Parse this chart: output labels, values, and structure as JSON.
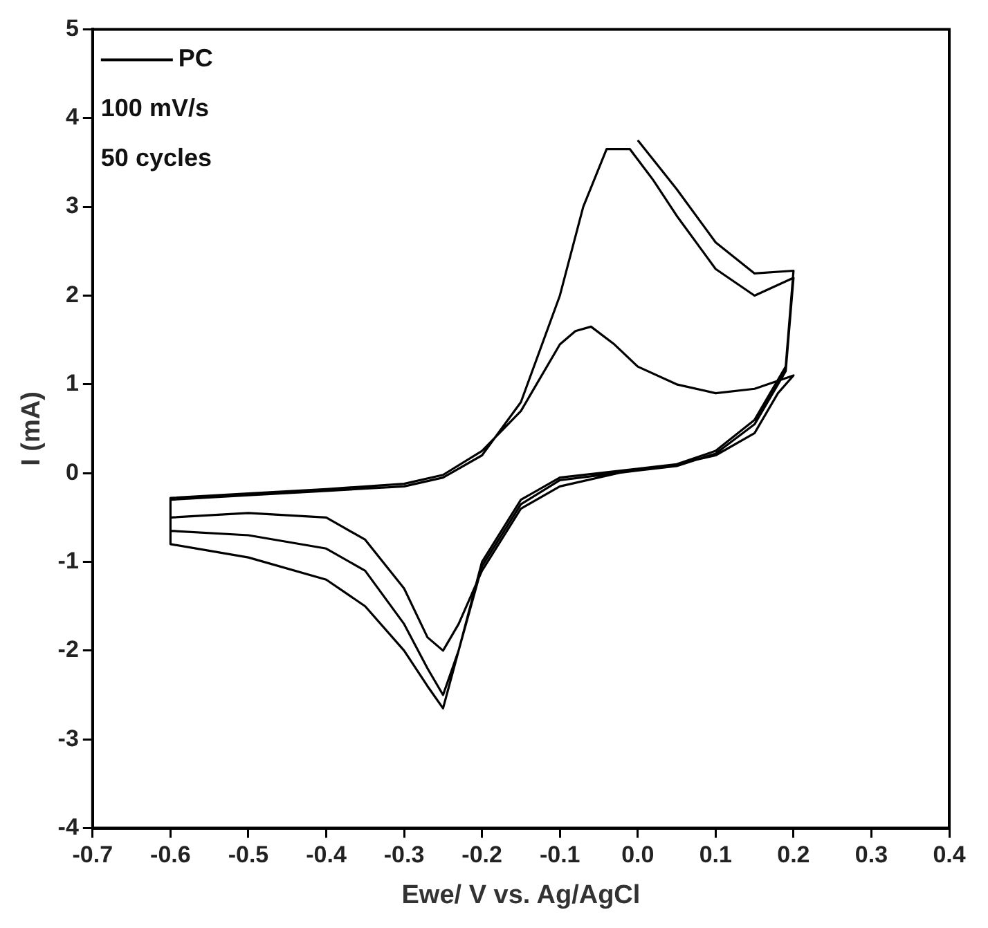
{
  "chart_data": {
    "type": "line",
    "xlabel": "Ewe/ V vs. Ag/AgCl",
    "ylabel": "I (mA)",
    "xlim": [
      -0.7,
      0.4
    ],
    "xticks": [
      -0.7,
      -0.6,
      -0.5,
      -0.4,
      -0.3,
      -0.2,
      -0.1,
      {
        "value": 0,
        "label": "0.0"
      },
      0.1,
      0.2,
      0.3,
      0.4
    ],
    "ylim": [
      -4,
      5
    ],
    "yticks": [
      -4,
      -3,
      -2,
      -1,
      0,
      1,
      2,
      3,
      4,
      5
    ],
    "grid": false,
    "legend": "top left",
    "marker": "none",
    "line_style": "solid",
    "annotations": [
      "100 mV/s",
      "50 cycles"
    ],
    "series": [
      {
        "name": "PC",
        "color": "#000000",
        "x": [
          0.0,
          0.05,
          0.1,
          0.15,
          0.2,
          0.19,
          0.15,
          0.1,
          0.05,
          0.0,
          -0.1,
          -0.15,
          -0.2,
          -0.23,
          -0.25,
          -0.27,
          -0.3,
          -0.35,
          -0.4,
          -0.5,
          -0.6,
          -0.6,
          -0.5,
          -0.4,
          -0.3,
          -0.25,
          -0.2,
          -0.15,
          -0.1,
          -0.07,
          -0.04,
          -0.01,
          0.02,
          0.05,
          0.1,
          0.15,
          0.2,
          0.19,
          0.15,
          0.1,
          0.05,
          0.0,
          -0.1,
          -0.15,
          -0.2,
          -0.23,
          -0.25,
          -0.27,
          -0.3,
          -0.35,
          -0.4,
          -0.5,
          -0.6,
          -0.6,
          -0.5,
          -0.4,
          -0.3,
          -0.25,
          -0.2,
          -0.15,
          -0.1,
          -0.08,
          -0.06,
          -0.03,
          0.0,
          0.05,
          0.1,
          0.15,
          0.2,
          0.18,
          0.15,
          0.1,
          0.05,
          0.0,
          -0.1,
          -0.15,
          -0.2,
          -0.23,
          -0.25,
          -0.27,
          -0.3,
          -0.35,
          -0.4,
          -0.5,
          -0.6
        ],
        "values": [
          3.75,
          3.2,
          2.6,
          2.25,
          2.28,
          1.2,
          0.6,
          0.25,
          0.1,
          0.05,
          -0.05,
          -0.3,
          -1.0,
          -2.0,
          -2.65,
          -2.4,
          -2.0,
          -1.5,
          -1.2,
          -0.95,
          -0.8,
          -0.3,
          -0.25,
          -0.2,
          -0.15,
          -0.05,
          0.2,
          0.8,
          2.0,
          3.0,
          3.65,
          3.65,
          3.3,
          2.9,
          2.3,
          2.0,
          2.2,
          1.15,
          0.55,
          0.22,
          0.08,
          0.03,
          -0.08,
          -0.35,
          -1.05,
          -2.0,
          -2.5,
          -2.2,
          -1.7,
          -1.1,
          -0.85,
          -0.7,
          -0.65,
          -0.28,
          -0.23,
          -0.18,
          -0.12,
          -0.02,
          0.25,
          0.7,
          1.45,
          1.6,
          1.65,
          1.45,
          1.2,
          1.0,
          0.9,
          0.95,
          1.1,
          0.9,
          0.45,
          0.2,
          0.1,
          0.05,
          -0.15,
          -0.4,
          -1.1,
          -1.7,
          -2.0,
          -1.85,
          -1.3,
          -0.75,
          -0.5,
          -0.45,
          -0.5
        ]
      }
    ]
  }
}
